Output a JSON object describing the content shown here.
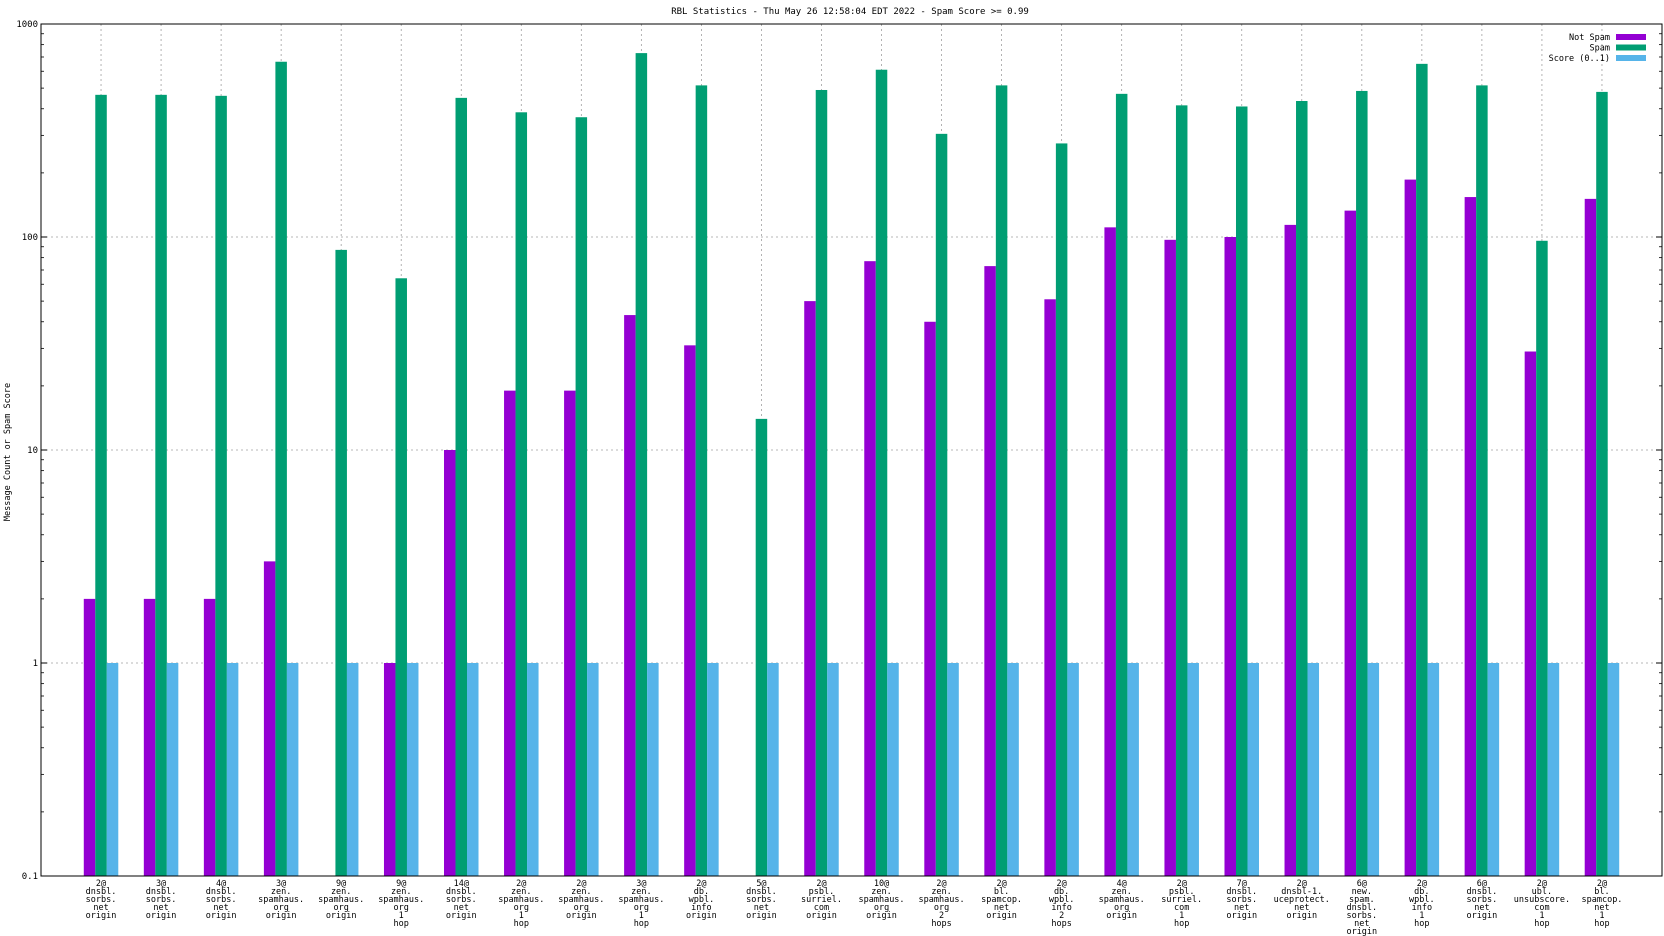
{
  "chart_data": {
    "type": "bar",
    "title": "RBL Statistics - Thu May 26 12:58:04 EDT 2022 - Spam Score >= 0.99",
    "ylabel": "Message Count or Spam Score",
    "xlabel": "",
    "yscale": "log",
    "ylim": [
      0.1,
      1000
    ],
    "yticks": [
      "0.1",
      "1",
      "10",
      "100",
      "1000"
    ],
    "grid": true,
    "legend_position": "top-right",
    "categories": [
      "2@ dnsbl. sorbs. net origin",
      "3@ dnsbl. sorbs. net origin",
      "4@ dnsbl. sorbs. net origin",
      "3@ zen. spamhaus. org origin",
      "9@ zen. spamhaus. org origin",
      "9@ zen. spamhaus. org 1 hop",
      "14@ dnsbl. sorbs. net origin",
      "2@ zen. spamhaus. org 1 hop",
      "2@ zen. spamhaus. org origin",
      "3@ zen. spamhaus. org 1 hop",
      "2@ db. wpbl. info origin",
      "5@ dnsbl. sorbs. net origin",
      "2@ psbl. surriel. com origin",
      "10@ zen. spamhaus. org origin",
      "2@ zen. spamhaus. org 2 hops",
      "2@ bl. spamcop. net origin",
      "2@ db. wpbl. info 2 hops",
      "4@ zen. spamhaus. org origin",
      "2@ psbl. surriel. com 1 hop",
      "7@ dnsbl. sorbs. net origin",
      "2@ dnsbl-1. uceprotect. net origin",
      "6@ new. spam. dnsbl. sorbs. net origin",
      "2@ db. wpbl. info 1 hop",
      "6@ dnsbl. sorbs. net origin",
      "2@ ubl. unsubscore. com 1 hop",
      "2@ bl. spamcop. net 1 hop"
    ],
    "series": [
      {
        "name": "Not Spam",
        "color": "#9400d3",
        "values": [
          2,
          2,
          2,
          3,
          null,
          1,
          10,
          19,
          19,
          43,
          31,
          null,
          50,
          77,
          40,
          73,
          51,
          111,
          97,
          100,
          114,
          133,
          186,
          154,
          29,
          151
        ]
      },
      {
        "name": "Spam",
        "color": "#009e73",
        "values": [
          465,
          465,
          460,
          665,
          87,
          64,
          450,
          385,
          365,
          730,
          515,
          14,
          490,
          610,
          305,
          515,
          275,
          470,
          415,
          410,
          435,
          485,
          650,
          515,
          96,
          480
        ]
      },
      {
        "name": "Score (0..1)",
        "color": "#56b4e9",
        "values": [
          1,
          1,
          1,
          1,
          1,
          1,
          1,
          1,
          1,
          1,
          1,
          1,
          1,
          1,
          1,
          1,
          1,
          1,
          1,
          1,
          1,
          1,
          1,
          1,
          1,
          1
        ]
      }
    ]
  }
}
